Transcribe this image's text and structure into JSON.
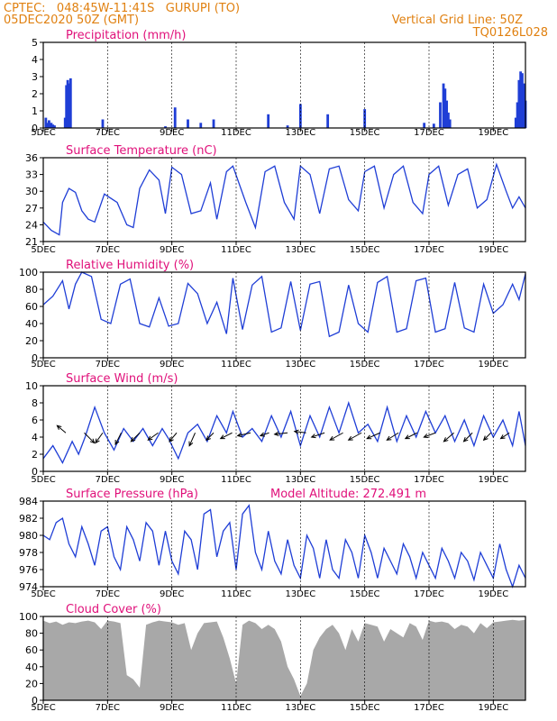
{
  "header": {
    "line1_left": "CPTEC:   048:45W-11:41S   GURUPI (TO)",
    "line2_left": "05DEC2020 50Z (GMT)",
    "line1_right": "Vertical Grid Line: 50Z",
    "line2_right": "TQ0126L028"
  },
  "colors": {
    "header": "#e08010",
    "title": "#e0107a",
    "line": "#1f3ed6",
    "cloud": "#a8a8a8"
  },
  "x_axis": {
    "ticks": [
      "5DEC",
      "7DEC",
      "9DEC",
      "11DEC",
      "13DEC",
      "15DEC",
      "17DEC",
      "19DEC"
    ],
    "tick_days": [
      5,
      7,
      9,
      11,
      13,
      15,
      17,
      19
    ]
  },
  "chart_data": [
    {
      "type": "bar",
      "title": "Precipitation (mm/h)",
      "ylim": [
        0,
        5
      ],
      "yticks": [
        0,
        1,
        2,
        3,
        4,
        5
      ],
      "xlim_days": [
        5,
        20
      ],
      "bars": [
        [
          5.08,
          0.6
        ],
        [
          5.12,
          0.3
        ],
        [
          5.18,
          0.45
        ],
        [
          5.25,
          0.3
        ],
        [
          5.3,
          0.2
        ],
        [
          5.35,
          0.15
        ],
        [
          5.68,
          0.6
        ],
        [
          5.72,
          2.5
        ],
        [
          5.76,
          2.8
        ],
        [
          5.8,
          2.6
        ],
        [
          5.85,
          2.9
        ],
        [
          6.85,
          0.5
        ],
        [
          8.8,
          0.1
        ],
        [
          9.1,
          1.2
        ],
        [
          9.5,
          0.5
        ],
        [
          9.9,
          0.3
        ],
        [
          10.3,
          0.5
        ],
        [
          12.0,
          0.8
        ],
        [
          12.6,
          0.15
        ],
        [
          13.0,
          1.4
        ],
        [
          13.85,
          0.8
        ],
        [
          15.0,
          1.1
        ],
        [
          16.85,
          0.3
        ],
        [
          17.15,
          0.25
        ],
        [
          17.35,
          1.5
        ],
        [
          17.45,
          2.6
        ],
        [
          17.5,
          2.3
        ],
        [
          17.55,
          1.6
        ],
        [
          17.6,
          0.9
        ],
        [
          17.65,
          0.5
        ],
        [
          19.7,
          0.6
        ],
        [
          19.75,
          1.5
        ],
        [
          19.8,
          2.8
        ],
        [
          19.85,
          3.3
        ],
        [
          19.9,
          3.2
        ],
        [
          19.95,
          2.6
        ],
        [
          20.0,
          1.6
        ]
      ]
    },
    {
      "type": "line",
      "title": "Surface Temperature (nC)",
      "ylim": [
        21,
        36
      ],
      "yticks": [
        21,
        24,
        27,
        30,
        33,
        36
      ],
      "xlim_days": [
        5,
        20
      ],
      "x_days": [
        5.0,
        5.25,
        5.5,
        5.6,
        5.8,
        6.0,
        6.2,
        6.4,
        6.6,
        6.9,
        7.3,
        7.6,
        7.8,
        8.0,
        8.3,
        8.6,
        8.8,
        9.0,
        9.3,
        9.6,
        9.9,
        10.2,
        10.4,
        10.7,
        10.9,
        11.3,
        11.6,
        11.9,
        12.2,
        12.5,
        12.8,
        13.0,
        13.3,
        13.6,
        13.9,
        14.2,
        14.5,
        14.8,
        15.0,
        15.3,
        15.6,
        15.9,
        16.2,
        16.5,
        16.8,
        17.0,
        17.3,
        17.6,
        17.9,
        18.2,
        18.5,
        18.8,
        19.1,
        19.4,
        19.6,
        19.8,
        20.0
      ],
      "y": [
        24.5,
        23.0,
        22.2,
        28.0,
        30.5,
        29.8,
        26.5,
        25.0,
        24.5,
        29.5,
        28.0,
        24.0,
        23.5,
        30.5,
        33.8,
        32.0,
        26.0,
        34.3,
        33.0,
        26.0,
        26.5,
        31.5,
        25.0,
        33.5,
        34.5,
        28.0,
        23.5,
        33.5,
        34.5,
        28.0,
        25.0,
        34.5,
        33.0,
        26.0,
        34.0,
        34.5,
        28.5,
        26.5,
        33.5,
        34.5,
        27.0,
        33.0,
        34.5,
        28.0,
        26.0,
        33.0,
        34.5,
        27.5,
        33.0,
        34.0,
        27.0,
        28.5,
        34.8,
        30.0,
        27.0,
        29.0,
        27.0
      ]
    },
    {
      "type": "line",
      "title": "Relative Humidity (%)",
      "ylim": [
        0,
        100
      ],
      "yticks": [
        0,
        20,
        40,
        60,
        80,
        100
      ],
      "xlim_days": [
        5,
        20
      ],
      "x_days": [
        5.0,
        5.3,
        5.6,
        5.8,
        6.0,
        6.2,
        6.5,
        6.8,
        7.1,
        7.4,
        7.7,
        8.0,
        8.3,
        8.6,
        8.9,
        9.2,
        9.5,
        9.8,
        10.1,
        10.4,
        10.7,
        10.9,
        11.2,
        11.5,
        11.8,
        12.1,
        12.4,
        12.7,
        13.0,
        13.3,
        13.6,
        13.9,
        14.2,
        14.5,
        14.8,
        15.1,
        15.4,
        15.7,
        16.0,
        16.3,
        16.6,
        16.9,
        17.2,
        17.5,
        17.8,
        18.1,
        18.4,
        18.7,
        19.0,
        19.3,
        19.6,
        19.8,
        20.0
      ],
      "y": [
        62,
        72,
        90,
        57,
        86,
        100,
        95,
        45,
        40,
        86,
        92,
        40,
        36,
        70,
        37,
        40,
        87,
        75,
        40,
        65,
        28,
        93,
        33,
        85,
        95,
        30,
        35,
        89,
        32,
        86,
        89,
        25,
        30,
        85,
        40,
        30,
        88,
        95,
        30,
        34,
        90,
        93,
        30,
        34,
        88,
        35,
        30,
        86,
        52,
        62,
        86,
        68,
        98
      ]
    },
    {
      "type": "line",
      "title": "Surface Wind (m/s)",
      "ylim": [
        0,
        10
      ],
      "yticks": [
        0,
        2,
        4,
        6,
        8,
        10
      ],
      "xlim_days": [
        5,
        20
      ],
      "x_days": [
        5.0,
        5.3,
        5.6,
        5.9,
        6.1,
        6.3,
        6.6,
        6.9,
        7.2,
        7.5,
        7.8,
        8.1,
        8.4,
        8.7,
        8.9,
        9.2,
        9.5,
        9.8,
        10.1,
        10.4,
        10.7,
        10.9,
        11.2,
        11.5,
        11.8,
        12.1,
        12.4,
        12.7,
        13.0,
        13.3,
        13.6,
        13.9,
        14.2,
        14.5,
        14.8,
        15.1,
        15.4,
        15.7,
        16.0,
        16.3,
        16.6,
        16.9,
        17.2,
        17.5,
        17.8,
        18.1,
        18.4,
        18.7,
        19.0,
        19.3,
        19.6,
        19.8,
        20.0
      ],
      "y": [
        1.5,
        3.0,
        1.0,
        3.5,
        2.0,
        4.0,
        7.5,
        4.5,
        2.5,
        5.0,
        3.5,
        5.0,
        3.0,
        5.0,
        3.8,
        1.5,
        4.5,
        5.5,
        3.5,
        6.5,
        4.5,
        7.0,
        4.0,
        5.0,
        3.5,
        6.5,
        4.0,
        7.0,
        3.0,
        6.5,
        4.0,
        7.5,
        4.5,
        8.0,
        4.5,
        5.5,
        3.5,
        7.5,
        3.5,
        6.5,
        4.0,
        7.0,
        4.5,
        6.5,
        3.5,
        6.0,
        3.0,
        6.5,
        4.0,
        6.0,
        3.0,
        7.0,
        3.0
      ],
      "arrows_uv": [
        [
          -0.6,
          0.5
        ],
        [
          0.7,
          -0.7
        ],
        [
          -0.5,
          -0.7
        ],
        [
          -0.4,
          -0.8
        ],
        [
          -0.6,
          -0.6
        ],
        [
          -0.7,
          -0.5
        ],
        [
          -0.5,
          -0.6
        ],
        [
          -0.4,
          -0.9
        ],
        [
          -0.5,
          -0.5
        ],
        [
          -0.8,
          -0.4
        ],
        [
          -0.9,
          -0.2
        ],
        [
          -0.6,
          -0.2
        ],
        [
          -0.9,
          -0.1
        ],
        [
          -0.8,
          0.1
        ],
        [
          -0.9,
          -0.3
        ],
        [
          -0.9,
          -0.5
        ],
        [
          -0.9,
          -0.5
        ],
        [
          -0.9,
          -0.4
        ],
        [
          -0.8,
          -0.5
        ],
        [
          -0.8,
          -0.4
        ],
        [
          -0.8,
          -0.3
        ],
        [
          -0.7,
          -0.6
        ],
        [
          -0.6,
          -0.6
        ],
        [
          -0.5,
          -0.5
        ],
        [
          -0.6,
          -0.4
        ]
      ]
    },
    {
      "type": "line",
      "title": "Surface Pressure (hPa)",
      "annotation": "Model Altitude: 272.491 m",
      "ylim": [
        974,
        984
      ],
      "yticks": [
        974,
        976,
        978,
        980,
        982,
        984
      ],
      "xlim_days": [
        5,
        20
      ],
      "x_days": [
        5.0,
        5.2,
        5.4,
        5.6,
        5.8,
        6.0,
        6.2,
        6.4,
        6.6,
        6.8,
        7.0,
        7.2,
        7.4,
        7.6,
        7.8,
        8.0,
        8.2,
        8.4,
        8.6,
        8.8,
        9.0,
        9.2,
        9.4,
        9.6,
        9.8,
        10.0,
        10.2,
        10.4,
        10.6,
        10.8,
        11.0,
        11.2,
        11.4,
        11.6,
        11.8,
        12.0,
        12.2,
        12.4,
        12.6,
        12.8,
        13.0,
        13.2,
        13.4,
        13.6,
        13.8,
        14.0,
        14.2,
        14.4,
        14.6,
        14.8,
        15.0,
        15.2,
        15.4,
        15.6,
        15.8,
        16.0,
        16.2,
        16.4,
        16.6,
        16.8,
        17.0,
        17.2,
        17.4,
        17.6,
        17.8,
        18.0,
        18.2,
        18.4,
        18.6,
        18.8,
        19.0,
        19.2,
        19.4,
        19.6,
        19.8,
        20.0
      ],
      "y": [
        980.0,
        979.5,
        981.5,
        982.0,
        979.0,
        977.5,
        981.0,
        979.0,
        976.5,
        980.5,
        981.0,
        977.5,
        976.0,
        981.0,
        979.5,
        977.0,
        981.5,
        980.5,
        976.5,
        980.5,
        977.0,
        975.5,
        980.5,
        979.5,
        976.0,
        982.5,
        983.0,
        977.5,
        980.5,
        981.5,
        976.0,
        982.5,
        983.5,
        978.0,
        976.0,
        980.5,
        977.0,
        975.5,
        979.5,
        976.5,
        975.0,
        980.0,
        978.5,
        975.0,
        979.5,
        976.0,
        975.0,
        979.5,
        978.0,
        975.0,
        980.0,
        978.0,
        975.0,
        978.5,
        977.0,
        975.5,
        979.0,
        977.5,
        975.0,
        978.0,
        976.5,
        975.0,
        978.5,
        977.0,
        975.0,
        978.0,
        977.0,
        974.8,
        978.0,
        976.5,
        975.0,
        979.0,
        976.0,
        974.0,
        976.5,
        975.0
      ]
    },
    {
      "type": "area",
      "title": "Cloud Cover (%)",
      "ylim": [
        0,
        100
      ],
      "yticks": [
        0,
        20,
        40,
        60,
        80,
        100
      ],
      "xlim_days": [
        5,
        20
      ],
      "x_days": [
        5.0,
        5.2,
        5.4,
        5.6,
        5.8,
        6.0,
        6.2,
        6.4,
        6.6,
        6.8,
        7.0,
        7.2,
        7.4,
        7.6,
        7.8,
        8.0,
        8.2,
        8.4,
        8.6,
        8.8,
        9.0,
        9.2,
        9.4,
        9.6,
        9.8,
        10.0,
        10.2,
        10.4,
        10.6,
        10.8,
        11.0,
        11.2,
        11.4,
        11.6,
        11.8,
        12.0,
        12.2,
        12.4,
        12.6,
        12.8,
        13.0,
        13.2,
        13.4,
        13.6,
        13.8,
        14.0,
        14.2,
        14.4,
        14.6,
        14.8,
        15.0,
        15.2,
        15.4,
        15.6,
        15.8,
        16.0,
        16.2,
        16.4,
        16.6,
        16.8,
        17.0,
        17.2,
        17.4,
        17.6,
        17.8,
        18.0,
        18.2,
        18.4,
        18.6,
        18.8,
        19.0,
        19.2,
        19.4,
        19.6,
        19.8,
        20.0
      ],
      "y": [
        95,
        92,
        94,
        90,
        93,
        92,
        94,
        95,
        93,
        85,
        95,
        94,
        92,
        30,
        25,
        15,
        90,
        93,
        95,
        94,
        93,
        90,
        92,
        60,
        80,
        92,
        93,
        94,
        75,
        50,
        20,
        90,
        95,
        92,
        85,
        90,
        85,
        70,
        40,
        25,
        5,
        20,
        60,
        75,
        85,
        90,
        80,
        60,
        85,
        70,
        92,
        90,
        88,
        70,
        85,
        80,
        75,
        92,
        88,
        72,
        95,
        93,
        94,
        92,
        85,
        90,
        88,
        80,
        92,
        86,
        93,
        94,
        95,
        96,
        95,
        96
      ]
    }
  ]
}
